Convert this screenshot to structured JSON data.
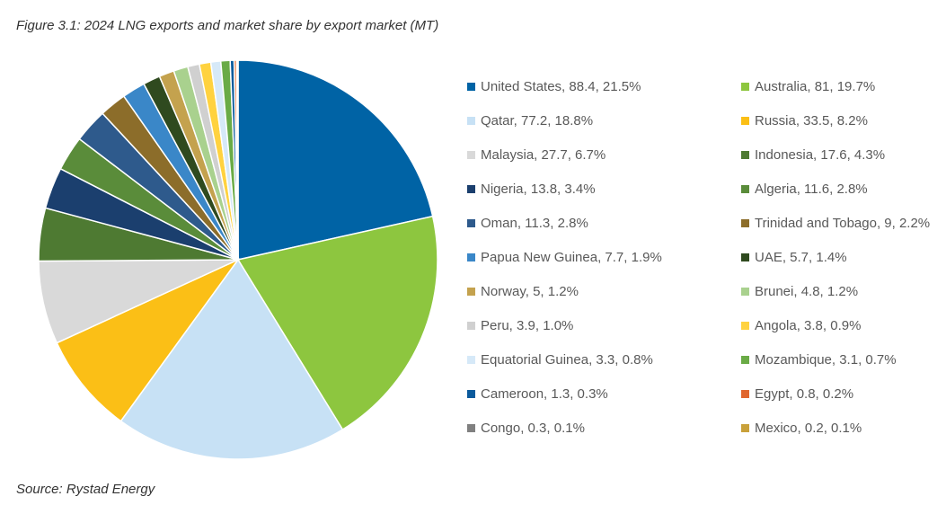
{
  "figure": {
    "title": "Figure 3.1: 2024 LNG exports and market share by export market (MT)",
    "source": "Source: Rystad Energy"
  },
  "chart_data": {
    "type": "pie",
    "title": "Figure 3.1: 2024 LNG exports and market share by export market (MT)",
    "legend_position": "right",
    "slices": [
      {
        "name": "United States",
        "value": 88.4,
        "share": "21.5%",
        "label": "United States, 88.4, 21.5%",
        "color": "#0063A5"
      },
      {
        "name": "Australia",
        "value": 81,
        "share": "19.7%",
        "label": "Australia, 81, 19.7%",
        "color": "#8DC63F"
      },
      {
        "name": "Qatar",
        "value": 77.2,
        "share": "18.8%",
        "label": "Qatar, 77.2, 18.8%",
        "color": "#C7E1F5"
      },
      {
        "name": "Russia",
        "value": 33.5,
        "share": "8.2%",
        "label": "Russia, 33.5, 8.2%",
        "color": "#FBBF16"
      },
      {
        "name": "Malaysia",
        "value": 27.7,
        "share": "6.7%",
        "label": "Malaysia, 27.7, 6.7%",
        "color": "#D9D9D9"
      },
      {
        "name": "Indonesia",
        "value": 17.6,
        "share": "4.3%",
        "label": "Indonesia, 17.6, 4.3%",
        "color": "#4E7A32"
      },
      {
        "name": "Nigeria",
        "value": 13.8,
        "share": "3.4%",
        "label": "Nigeria, 13.8, 3.4%",
        "color": "#1B3F6E"
      },
      {
        "name": "Algeria",
        "value": 11.6,
        "share": "2.8%",
        "label": "Algeria, 11.6, 2.8%",
        "color": "#5A8C3A"
      },
      {
        "name": "Oman",
        "value": 11.3,
        "share": "2.8%",
        "label": "Oman, 11.3, 2.8%",
        "color": "#2E5A8C"
      },
      {
        "name": "Trinidad and Tobago",
        "value": 9,
        "share": "2.2%",
        "label": "Trinidad and Tobago, 9, 2.2%",
        "color": "#8C6D2A"
      },
      {
        "name": "Papua New Guinea",
        "value": 7.7,
        "share": "1.9%",
        "label": "Papua New Guinea, 7.7, 1.9%",
        "color": "#3A87C8"
      },
      {
        "name": "UAE",
        "value": 5.7,
        "share": "1.4%",
        "label": "UAE, 5.7, 1.4%",
        "color": "#2F4A1F"
      },
      {
        "name": "Norway",
        "value": 5,
        "share": "1.2%",
        "label": "Norway, 5, 1.2%",
        "color": "#C4A24E"
      },
      {
        "name": "Brunei",
        "value": 4.8,
        "share": "1.2%",
        "label": "Brunei, 4.8, 1.2%",
        "color": "#A9D18E"
      },
      {
        "name": "Peru",
        "value": 3.9,
        "share": "1.0%",
        "label": "Peru, 3.9, 1.0%",
        "color": "#D0D0D0"
      },
      {
        "name": "Angola",
        "value": 3.8,
        "share": "0.9%",
        "label": "Angola, 3.8, 0.9%",
        "color": "#FFD23F"
      },
      {
        "name": "Equatorial Guinea",
        "value": 3.3,
        "share": "0.8%",
        "label": "Equatorial Guinea, 3.3, 0.8%",
        "color": "#D6E9F8"
      },
      {
        "name": "Mozambique",
        "value": 3.1,
        "share": "0.7%",
        "label": "Mozambique, 3.1, 0.7%",
        "color": "#6AAB46"
      },
      {
        "name": "Cameroon",
        "value": 1.3,
        "share": "0.3%",
        "label": "Cameroon, 1.3, 0.3%",
        "color": "#0B5A9C"
      },
      {
        "name": "Egypt",
        "value": 0.8,
        "share": "0.2%",
        "label": "Egypt, 0.8, 0.2%",
        "color": "#E0662E"
      },
      {
        "name": "Congo",
        "value": 0.3,
        "share": "0.1%",
        "label": "Congo, 0.3, 0.1%",
        "color": "#808080"
      },
      {
        "name": "Mexico",
        "value": 0.2,
        "share": "0.1%",
        "label": "Mexico, 0.2, 0.1%",
        "color": "#C9A13A"
      }
    ]
  }
}
